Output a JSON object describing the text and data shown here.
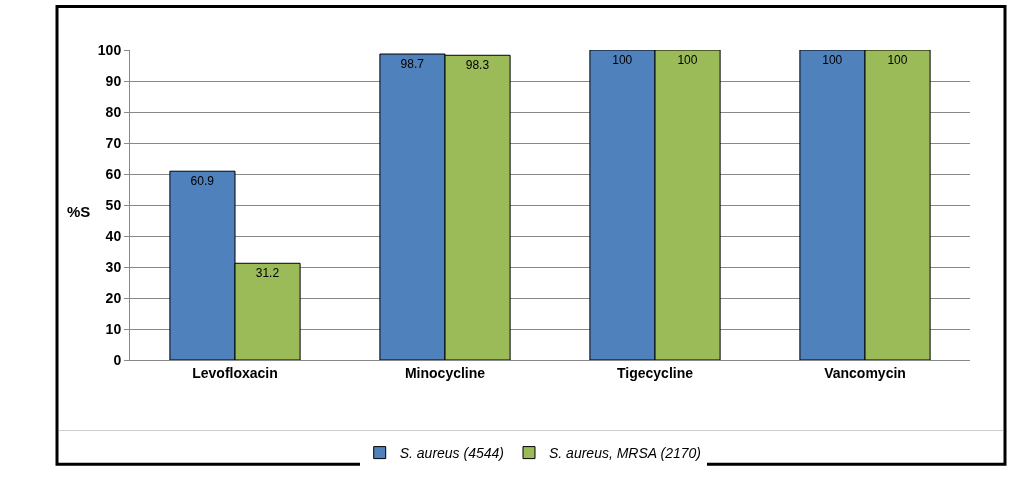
{
  "chart_data": {
    "type": "bar",
    "ylabel": "%S",
    "categories": [
      "Levofloxacin",
      "Minocycline",
      "Tigecycline",
      "Vancomycin"
    ],
    "series": [
      {
        "name": "S. aureus (4544)",
        "color": "#4f81bd",
        "values": [
          60.9,
          98.7,
          100,
          100
        ]
      },
      {
        "name": "S. aureus, MRSA (2170)",
        "color": "#9bbb59",
        "values": [
          31.2,
          98.3,
          100,
          100
        ]
      }
    ],
    "ylim": [
      0,
      100
    ],
    "yticks": [
      0,
      10,
      20,
      30,
      40,
      50,
      60,
      70,
      80,
      90,
      100
    ],
    "grid": "y",
    "legend": "bottom",
    "data_labels": true
  }
}
